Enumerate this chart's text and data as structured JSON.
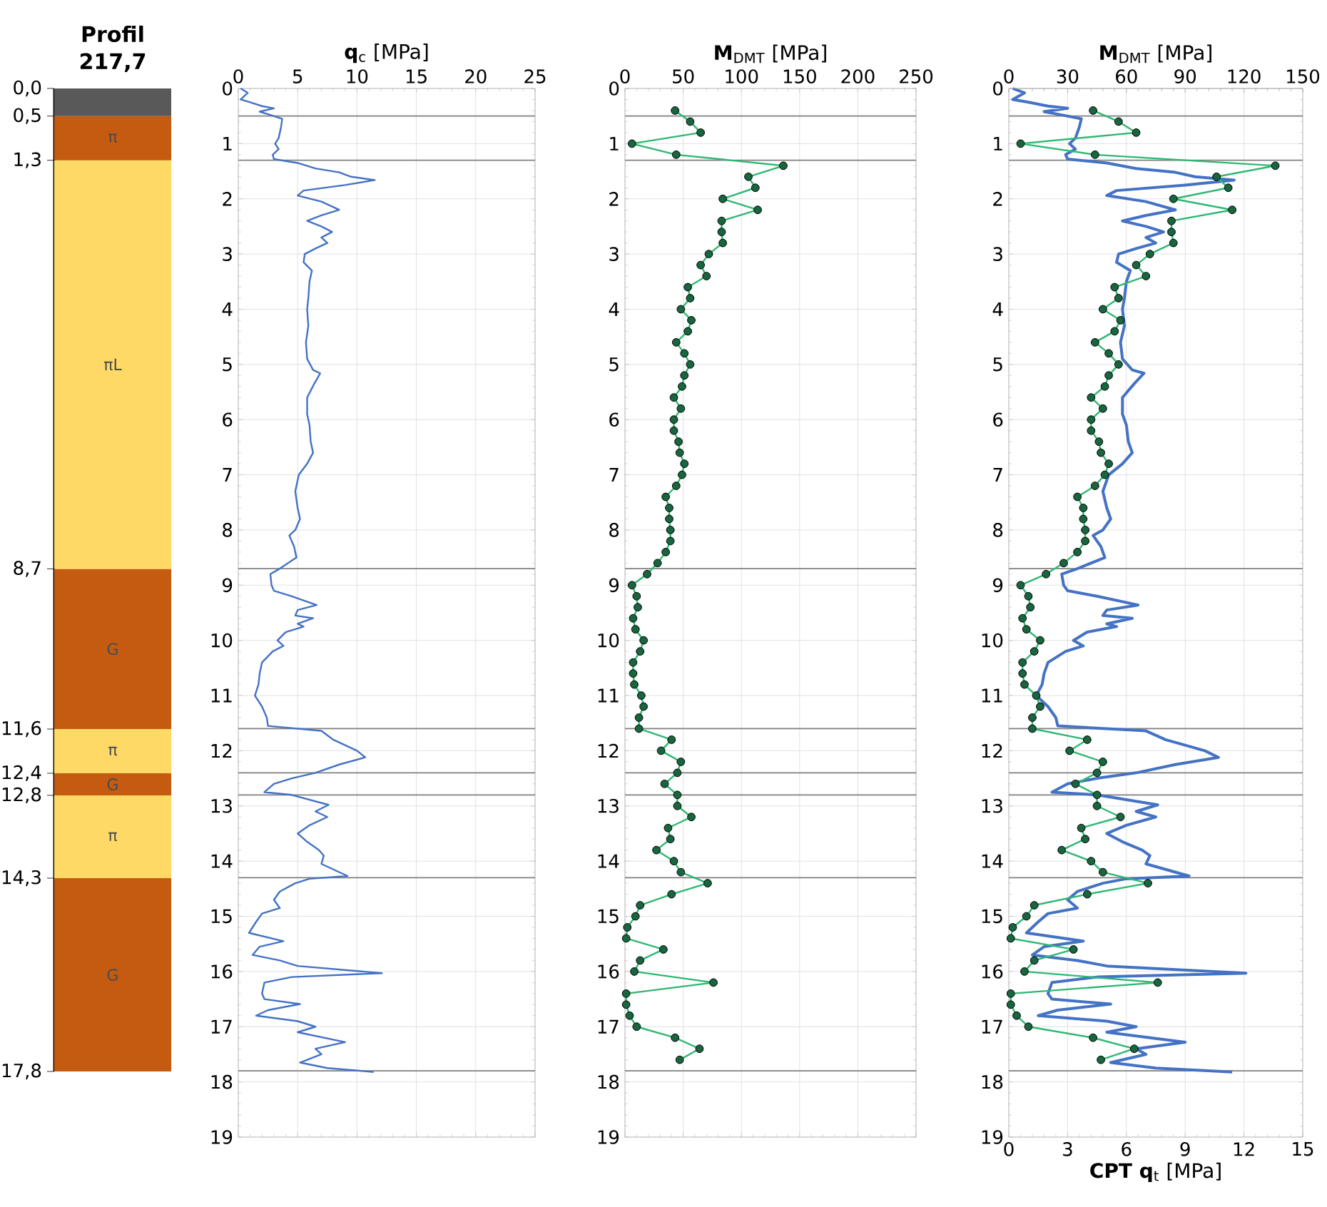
{
  "chart_data": [
    {
      "type": "bar",
      "title": "Profil",
      "subtitle": "217,7",
      "stacked": true,
      "categories": [
        null
      ],
      "ylim": [
        17.8,
        0
      ],
      "yticks": [
        {
          "value": 0,
          "label": "0,0"
        },
        {
          "value": 0.5,
          "label": "0,5"
        },
        {
          "value": 1.3,
          "label": "1,3"
        },
        {
          "value": 8.7,
          "label": "8,7"
        },
        {
          "value": 11.6,
          "label": "11,6"
        },
        {
          "value": 12.4,
          "label": "12,4"
        },
        {
          "value": 12.8,
          "label": "12,8"
        },
        {
          "value": 14.3,
          "label": "14,3"
        },
        {
          "value": 17.8,
          "label": "17,8"
        }
      ],
      "series": [
        {
          "color": "#595959",
          "values": [
            0.5
          ]
        },
        {
          "name": "π",
          "color": "#c55a11",
          "values": [
            0.8
          ]
        },
        {
          "name": "πL",
          "color": "#ffd966",
          "values": [
            7.4
          ]
        },
        {
          "name": "G",
          "color": "#c55a11",
          "values": [
            2.9
          ]
        },
        {
          "name": "π",
          "color": "#ffd966",
          "values": [
            0.8
          ]
        },
        {
          "name": "G",
          "color": "#c55a11",
          "values": [
            0.4
          ]
        },
        {
          "name": "π",
          "color": "#ffd966",
          "values": [
            1.5
          ]
        },
        {
          "name": "G",
          "color": "#c55a11",
          "values": [
            3.5
          ]
        }
      ]
    },
    {
      "type": "line",
      "xlabel": "**q**$_{c}$ [MPa]",
      "xlim": [
        0,
        25
      ],
      "xticks": [
        0,
        5,
        10,
        15,
        20,
        25
      ],
      "ylim": [
        19,
        0
      ],
      "yticks": [
        0,
        1,
        2,
        3,
        4,
        5,
        6,
        7,
        8,
        9,
        10,
        11,
        12,
        13,
        14,
        15,
        16,
        17,
        18,
        19
      ],
      "grid": true,
      "ref_lines": [
        {
          "axis": "y",
          "value": 0.5,
          "color": "#808080"
        },
        {
          "axis": "y",
          "value": 1.3,
          "color": "#808080"
        },
        {
          "axis": "y",
          "value": 8.7,
          "color": "#808080"
        },
        {
          "axis": "y",
          "value": 11.6,
          "color": "#808080"
        },
        {
          "axis": "y",
          "value": 12.4,
          "color": "#808080"
        },
        {
          "axis": "y",
          "value": 12.8,
          "color": "#808080"
        },
        {
          "axis": "y",
          "value": 14.3,
          "color": "#808080"
        },
        {
          "axis": "y",
          "value": 17.8,
          "color": "#808080"
        }
      ],
      "series": [
        {
          "color": "#4472c4",
          "x": [
            0.2,
            0.8,
            0.2,
            1.0,
            2.0,
            3.0,
            1.8,
            2.7,
            3.7,
            3.6,
            3.4,
            3.1,
            3.4,
            2.9,
            3.0,
            5.0,
            6.5,
            8.5,
            9.5,
            11.5,
            9.0,
            5.5,
            5.0,
            7.0,
            8.5,
            7.0,
            5.8,
            7.0,
            7.9,
            7.0,
            7.5,
            6.5,
            5.6,
            5.5,
            6.2,
            6.0,
            5.9,
            5.8,
            5.9,
            5.7,
            5.8,
            6.3,
            6.9,
            6.4,
            5.8,
            5.8,
            6.0,
            6.1,
            6.3,
            5.8,
            5.1,
            4.8,
            5.0,
            5.2,
            4.8,
            4.3,
            4.7,
            4.9,
            3.5,
            2.7,
            2.8,
            3.0,
            4.5,
            6.6,
            5.0,
            4.8,
            6.3,
            5.0,
            5.5,
            4.0,
            3.3,
            3.8,
            2.9,
            2.0,
            1.8,
            1.7,
            1.4,
            2.0,
            2.4,
            2.5,
            7.0,
            8.0,
            10.0,
            10.7,
            8.5,
            6.5,
            4.5,
            3.0,
            2.2,
            4.5,
            7.6,
            6.5,
            7.5,
            6.0,
            5.0,
            5.8,
            6.8,
            7.2,
            7.0,
            9.2,
            6.0,
            4.8,
            3.5,
            3.0,
            3.5,
            2.0,
            1.5,
            0.9,
            3.8,
            1.8,
            1.2,
            3.5,
            5.0,
            12.1,
            4.5,
            2.2,
            2.0,
            2.2,
            5.2,
            2.5,
            1.5,
            5.0,
            6.5,
            5.0,
            9.0,
            6.5,
            7.0,
            5.2,
            7.5,
            11.4
          ],
          "values": [
            0.0,
            0.08,
            0.2,
            0.25,
            0.32,
            0.36,
            0.42,
            0.48,
            0.55,
            0.7,
            0.9,
            1.0,
            1.1,
            1.2,
            1.28,
            1.35,
            1.45,
            1.52,
            1.6,
            1.66,
            1.75,
            1.85,
            1.94,
            2.05,
            2.2,
            2.3,
            2.4,
            2.5,
            2.6,
            2.7,
            2.8,
            2.9,
            3.0,
            3.15,
            3.3,
            3.5,
            3.8,
            4.0,
            4.3,
            4.6,
            4.9,
            5.1,
            5.16,
            5.35,
            5.6,
            5.9,
            6.1,
            6.4,
            6.6,
            6.8,
            7.0,
            7.3,
            7.6,
            7.8,
            8.0,
            8.1,
            8.3,
            8.5,
            8.7,
            8.8,
            9.0,
            9.1,
            9.2,
            9.36,
            9.45,
            9.55,
            9.6,
            9.7,
            9.75,
            9.85,
            10.0,
            10.1,
            10.2,
            10.4,
            10.6,
            10.8,
            11.0,
            11.2,
            11.4,
            11.55,
            11.64,
            11.8,
            12.0,
            12.12,
            12.25,
            12.4,
            12.5,
            12.6,
            12.75,
            12.8,
            12.98,
            13.1,
            13.2,
            13.35,
            13.5,
            13.65,
            13.8,
            13.9,
            14.05,
            14.27,
            14.32,
            14.4,
            14.55,
            14.7,
            14.85,
            14.95,
            15.1,
            15.3,
            15.45,
            15.55,
            15.7,
            15.8,
            15.9,
            16.03,
            16.1,
            16.2,
            16.4,
            16.5,
            16.59,
            16.7,
            16.8,
            16.9,
            17.0,
            17.1,
            17.28,
            17.4,
            17.5,
            17.65,
            17.75,
            17.82
          ]
        }
      ]
    },
    {
      "type": "line",
      "xlabel": "**M**$_{DMT}$ [MPa]",
      "xlim": [
        0,
        250
      ],
      "xticks": [
        0,
        50,
        100,
        150,
        200,
        250
      ],
      "ylim": [
        19,
        0
      ],
      "yticks": [
        0,
        1,
        2,
        3,
        4,
        5,
        6,
        7,
        8,
        9,
        10,
        11,
        12,
        13,
        14,
        15,
        16,
        17,
        18,
        19
      ],
      "grid": true,
      "marker": "circle",
      "ref_lines": [
        {
          "axis": "y",
          "value": 0.5,
          "color": "#808080"
        },
        {
          "axis": "y",
          "value": 1.3,
          "color": "#808080"
        },
        {
          "axis": "y",
          "value": 8.7,
          "color": "#808080"
        },
        {
          "axis": "y",
          "value": 11.6,
          "color": "#808080"
        },
        {
          "axis": "y",
          "value": 12.4,
          "color": "#808080"
        },
        {
          "axis": "y",
          "value": 12.8,
          "color": "#808080"
        },
        {
          "axis": "y",
          "value": 14.3,
          "color": "#808080"
        },
        {
          "axis": "y",
          "value": 17.8,
          "color": "#808080"
        }
      ],
      "series": [
        {
          "color": "#2eb872",
          "x": [
            43,
            56,
            65,
            6,
            44,
            136,
            106,
            112,
            84,
            114,
            83,
            83,
            84,
            72,
            65,
            70,
            54,
            56,
            48,
            57,
            54,
            44,
            51,
            56,
            51,
            49,
            42,
            48,
            42,
            42,
            46,
            47,
            51,
            49,
            44,
            35,
            38,
            38,
            39,
            39,
            35,
            28,
            19,
            6,
            10,
            11,
            7,
            9,
            16,
            13,
            7,
            7,
            8,
            14,
            16,
            12,
            12,
            40,
            31,
            48,
            45,
            34,
            45,
            45,
            57,
            37,
            39,
            27,
            42,
            48,
            71,
            40,
            13,
            9,
            2,
            1,
            33,
            13,
            8,
            76,
            1,
            1,
            4,
            10,
            43,
            64,
            47
          ],
          "values": [
            0.4,
            0.6,
            0.8,
            1.0,
            1.2,
            1.4,
            1.6,
            1.8,
            2.0,
            2.2,
            2.4,
            2.6,
            2.8,
            3.0,
            3.2,
            3.4,
            3.6,
            3.8,
            4.0,
            4.2,
            4.4,
            4.6,
            4.8,
            5.0,
            5.2,
            5.4,
            5.6,
            5.8,
            6.0,
            6.2,
            6.4,
            6.6,
            6.8,
            7.0,
            7.2,
            7.4,
            7.6,
            7.8,
            8.0,
            8.2,
            8.4,
            8.6,
            8.8,
            9.0,
            9.2,
            9.4,
            9.6,
            9.8,
            10.0,
            10.2,
            10.4,
            10.6,
            10.8,
            11.0,
            11.2,
            11.4,
            11.6,
            11.8,
            12.0,
            12.2,
            12.4,
            12.6,
            12.8,
            13.0,
            13.2,
            13.4,
            13.6,
            13.8,
            14.0,
            14.2,
            14.4,
            14.6,
            14.8,
            15.0,
            15.2,
            15.4,
            15.6,
            15.8,
            16.0,
            16.2,
            16.4,
            16.6,
            16.8,
            17.0,
            17.2,
            17.4,
            17.6
          ]
        }
      ]
    },
    {
      "type": "line",
      "xlabel": "**CPT q**$_{t}$  [MPa]",
      "x2label": "**M**$_{DMT}$ [MPa]",
      "xlim": [
        0,
        15
      ],
      "xticks": [
        0,
        3,
        6,
        9,
        12,
        15
      ],
      "x2lim": [
        0,
        150
      ],
      "x2ticks": [
        0,
        30,
        60,
        90,
        120,
        150
      ],
      "ylim": [
        19,
        0
      ],
      "yticks": [
        0,
        1,
        2,
        3,
        4,
        5,
        6,
        7,
        8,
        9,
        10,
        11,
        12,
        13,
        14,
        15,
        16,
        17,
        18,
        19
      ],
      "grid": true,
      "ref_lines": [
        {
          "axis": "y",
          "value": 0.5,
          "color": "#808080"
        },
        {
          "axis": "y",
          "value": 1.3,
          "color": "#808080"
        },
        {
          "axis": "y",
          "value": 8.7,
          "color": "#808080"
        },
        {
          "axis": "y",
          "value": 11.6,
          "color": "#808080"
        },
        {
          "axis": "y",
          "value": 12.4,
          "color": "#808080"
        },
        {
          "axis": "y",
          "value": 12.8,
          "color": "#808080"
        },
        {
          "axis": "y",
          "value": 14.3,
          "color": "#808080"
        },
        {
          "axis": "y",
          "value": 17.8,
          "color": "#808080"
        }
      ],
      "series": [
        {
          "color": "#4472c4",
          "marker": "none",
          "x": [
            0.2,
            0.8,
            0.2,
            1.0,
            2.0,
            3.0,
            1.8,
            2.7,
            3.7,
            3.6,
            3.4,
            3.1,
            3.4,
            2.9,
            3.0,
            5.0,
            6.5,
            8.5,
            9.5,
            11.5,
            9.0,
            5.5,
            5.0,
            7.0,
            8.5,
            7.0,
            5.8,
            7.0,
            7.9,
            7.0,
            7.5,
            6.5,
            5.6,
            5.5,
            6.2,
            6.0,
            5.9,
            5.8,
            5.9,
            5.7,
            5.8,
            6.3,
            6.9,
            6.4,
            5.8,
            5.8,
            6.0,
            6.1,
            6.3,
            5.8,
            5.1,
            4.8,
            5.0,
            5.2,
            4.8,
            4.3,
            4.7,
            4.9,
            3.5,
            2.7,
            2.8,
            3.0,
            4.5,
            6.6,
            5.0,
            4.8,
            6.3,
            5.0,
            5.5,
            4.0,
            3.3,
            3.8,
            2.9,
            2.0,
            1.8,
            1.7,
            1.4,
            2.0,
            2.4,
            2.5,
            7.0,
            8.0,
            10.0,
            10.7,
            8.5,
            6.5,
            4.5,
            3.0,
            2.2,
            4.5,
            7.6,
            6.5,
            7.5,
            6.0,
            5.0,
            5.8,
            6.8,
            7.2,
            7.0,
            9.2,
            6.0,
            4.8,
            3.5,
            3.0,
            3.5,
            2.0,
            1.5,
            0.9,
            3.8,
            1.8,
            1.2,
            3.5,
            5.0,
            12.1,
            4.5,
            2.2,
            2.0,
            2.2,
            5.2,
            2.5,
            1.5,
            5.0,
            6.5,
            5.0,
            9.0,
            6.5,
            7.0,
            5.2,
            7.5,
            11.4
          ],
          "values": [
            0.0,
            0.08,
            0.2,
            0.25,
            0.32,
            0.36,
            0.42,
            0.48,
            0.55,
            0.7,
            0.9,
            1.0,
            1.1,
            1.2,
            1.28,
            1.35,
            1.45,
            1.52,
            1.6,
            1.66,
            1.75,
            1.85,
            1.94,
            2.05,
            2.2,
            2.3,
            2.4,
            2.5,
            2.6,
            2.7,
            2.8,
            2.9,
            3.0,
            3.15,
            3.3,
            3.5,
            3.8,
            4.0,
            4.3,
            4.6,
            4.9,
            5.1,
            5.16,
            5.35,
            5.6,
            5.9,
            6.1,
            6.4,
            6.6,
            6.8,
            7.0,
            7.3,
            7.6,
            7.8,
            8.0,
            8.1,
            8.3,
            8.5,
            8.7,
            8.8,
            9.0,
            9.1,
            9.2,
            9.36,
            9.45,
            9.55,
            9.6,
            9.7,
            9.75,
            9.85,
            10.0,
            10.1,
            10.2,
            10.4,
            10.6,
            10.8,
            11.0,
            11.2,
            11.4,
            11.55,
            11.64,
            11.8,
            12.0,
            12.12,
            12.25,
            12.4,
            12.5,
            12.6,
            12.75,
            12.8,
            12.98,
            13.1,
            13.2,
            13.35,
            13.5,
            13.65,
            13.8,
            13.9,
            14.05,
            14.27,
            14.32,
            14.4,
            14.55,
            14.7,
            14.85,
            14.95,
            15.1,
            15.3,
            15.45,
            15.55,
            15.7,
            15.8,
            15.9,
            16.03,
            16.1,
            16.2,
            16.4,
            16.5,
            16.59,
            16.7,
            16.8,
            16.9,
            17.0,
            17.1,
            17.28,
            17.4,
            17.5,
            17.65,
            17.75,
            17.82
          ]
        },
        {
          "color": "#2eb872",
          "axis": "x2",
          "marker": "circle",
          "x": [
            43,
            56,
            65,
            6,
            44,
            136,
            106,
            112,
            84,
            114,
            83,
            83,
            84,
            72,
            65,
            70,
            54,
            56,
            48,
            57,
            54,
            44,
            51,
            56,
            51,
            49,
            42,
            48,
            42,
            42,
            46,
            47,
            51,
            49,
            44,
            35,
            38,
            38,
            39,
            39,
            35,
            28,
            19,
            6,
            10,
            11,
            7,
            9,
            16,
            13,
            7,
            7,
            8,
            14,
            16,
            12,
            12,
            40,
            31,
            48,
            45,
            34,
            45,
            45,
            57,
            37,
            39,
            27,
            42,
            48,
            71,
            40,
            13,
            9,
            2,
            1,
            33,
            13,
            8,
            76,
            1,
            1,
            4,
            10,
            43,
            64,
            47
          ],
          "values": [
            0.4,
            0.6,
            0.8,
            1.0,
            1.2,
            1.4,
            1.6,
            1.8,
            2.0,
            2.2,
            2.4,
            2.6,
            2.8,
            3.0,
            3.2,
            3.4,
            3.6,
            3.8,
            4.0,
            4.2,
            4.4,
            4.6,
            4.8,
            5.0,
            5.2,
            5.4,
            5.6,
            5.8,
            6.0,
            6.2,
            6.4,
            6.6,
            6.8,
            7.0,
            7.2,
            7.4,
            7.6,
            7.8,
            8.0,
            8.2,
            8.4,
            8.6,
            8.8,
            9.0,
            9.2,
            9.4,
            9.6,
            9.8,
            10.0,
            10.2,
            10.4,
            10.6,
            10.8,
            11.0,
            11.2,
            11.4,
            11.6,
            11.8,
            12.0,
            12.2,
            12.4,
            12.6,
            12.8,
            13.0,
            13.2,
            13.4,
            13.6,
            13.8,
            14.0,
            14.2,
            14.4,
            14.6,
            14.8,
            15.0,
            15.2,
            15.4,
            15.6,
            15.8,
            16.0,
            16.2,
            16.4,
            16.6,
            16.8,
            17.0,
            17.2,
            17.4,
            17.6
          ]
        }
      ]
    }
  ]
}
